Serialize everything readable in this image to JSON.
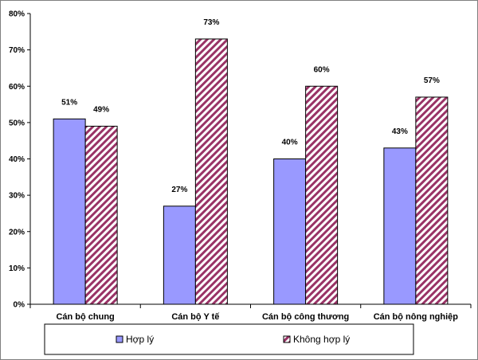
{
  "chart_data": {
    "type": "bar",
    "categories": [
      "Cán bộ chung",
      "Cán bộ Y tế",
      "Cán bộ công thương",
      "Cán bộ nông nghiệp"
    ],
    "series": [
      {
        "name": "Hợp lý",
        "values": [
          51,
          27,
          40,
          43
        ],
        "labels": [
          "51%",
          "27%",
          "40%",
          "43%"
        ],
        "color": "#9999ff",
        "pattern": "solid"
      },
      {
        "name": "Không hợp lý",
        "values": [
          49,
          73,
          60,
          57
        ],
        "labels": [
          "49%",
          "73%",
          "60%",
          "57%"
        ],
        "color": "#993366",
        "pattern": "diagonal-stripes"
      }
    ],
    "ylim": [
      0,
      80
    ],
    "yticks": [
      0,
      10,
      20,
      30,
      40,
      50,
      60,
      70,
      80
    ],
    "ytick_labels": [
      "0%",
      "10%",
      "20%",
      "30%",
      "40%",
      "50%",
      "60%",
      "70%",
      "80%"
    ],
    "grid": false,
    "legend_position": "bottom"
  }
}
